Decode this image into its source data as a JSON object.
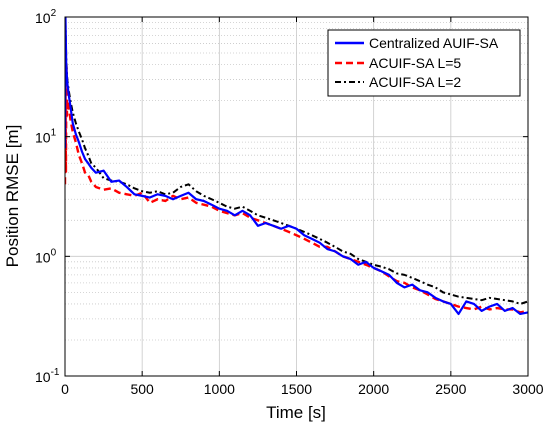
{
  "chart_data": {
    "type": "line",
    "xlabel": "Time [s]",
    "ylabel": "Position RMSE [m]",
    "xlim": [
      0,
      3000
    ],
    "ylim": [
      0.1,
      100
    ],
    "yscale": "log",
    "grid": true,
    "legend_position": "top-right",
    "x_ticks": [
      0,
      500,
      1000,
      1500,
      2000,
      2500,
      3000
    ],
    "x_tick_labels": [
      "0",
      "500",
      "1000",
      "1500",
      "2000",
      "2500",
      "3000"
    ],
    "y_ticks": [
      0.1,
      1,
      10,
      100
    ],
    "y_tick_labels": [
      {
        "base": "10",
        "exp": "-1"
      },
      {
        "base": "10",
        "exp": "0"
      },
      {
        "base": "10",
        "exp": "1"
      },
      {
        "base": "10",
        "exp": "2"
      }
    ],
    "series": [
      {
        "name": "Centralized AUIF-SA",
        "color": "#0000ff",
        "style": "solid",
        "points": [
          [
            0,
            8
          ],
          [
            3,
            100
          ],
          [
            8,
            40
          ],
          [
            15,
            28
          ],
          [
            25,
            22
          ],
          [
            35,
            18
          ],
          [
            50,
            13
          ],
          [
            70,
            10.5
          ],
          [
            90,
            9
          ],
          [
            110,
            7.5
          ],
          [
            130,
            6.5
          ],
          [
            150,
            6
          ],
          [
            170,
            5.5
          ],
          [
            200,
            5
          ],
          [
            250,
            5.2
          ],
          [
            300,
            4.2
          ],
          [
            350,
            4.3
          ],
          [
            400,
            3.8
          ],
          [
            450,
            3.3
          ],
          [
            500,
            3.2
          ],
          [
            550,
            3.1
          ],
          [
            600,
            3.3
          ],
          [
            650,
            3.2
          ],
          [
            700,
            3.0
          ],
          [
            750,
            3.2
          ],
          [
            800,
            3.4
          ],
          [
            850,
            3.0
          ],
          [
            900,
            2.9
          ],
          [
            950,
            2.7
          ],
          [
            1000,
            2.5
          ],
          [
            1050,
            2.4
          ],
          [
            1100,
            2.2
          ],
          [
            1150,
            2.4
          ],
          [
            1200,
            2.2
          ],
          [
            1250,
            1.8
          ],
          [
            1300,
            1.9
          ],
          [
            1350,
            1.8
          ],
          [
            1400,
            1.7
          ],
          [
            1450,
            1.8
          ],
          [
            1500,
            1.7
          ],
          [
            1550,
            1.5
          ],
          [
            1600,
            1.4
          ],
          [
            1650,
            1.3
          ],
          [
            1700,
            1.15
          ],
          [
            1750,
            1.1
          ],
          [
            1800,
            1.0
          ],
          [
            1850,
            0.95
          ],
          [
            1900,
            0.85
          ],
          [
            1950,
            0.9
          ],
          [
            2000,
            0.8
          ],
          [
            2050,
            0.75
          ],
          [
            2100,
            0.7
          ],
          [
            2150,
            0.6
          ],
          [
            2200,
            0.55
          ],
          [
            2250,
            0.58
          ],
          [
            2300,
            0.52
          ],
          [
            2350,
            0.5
          ],
          [
            2400,
            0.45
          ],
          [
            2450,
            0.42
          ],
          [
            2500,
            0.4
          ],
          [
            2550,
            0.33
          ],
          [
            2600,
            0.42
          ],
          [
            2650,
            0.4
          ],
          [
            2700,
            0.35
          ],
          [
            2750,
            0.38
          ],
          [
            2800,
            0.4
          ],
          [
            2850,
            0.35
          ],
          [
            2900,
            0.37
          ],
          [
            2950,
            0.33
          ],
          [
            3000,
            0.34
          ]
        ]
      },
      {
        "name": "ACUIF-SA L=5",
        "color": "#ff0000",
        "style": "dashed",
        "points": [
          [
            0,
            4
          ],
          [
            3,
            30
          ],
          [
            6,
            5
          ],
          [
            9,
            40
          ],
          [
            13,
            15
          ],
          [
            18,
            20
          ],
          [
            25,
            18
          ],
          [
            35,
            14
          ],
          [
            50,
            11
          ],
          [
            70,
            9
          ],
          [
            90,
            7
          ],
          [
            110,
            6
          ],
          [
            130,
            5
          ],
          [
            150,
            4.8
          ],
          [
            170,
            4.2
          ],
          [
            200,
            3.8
          ],
          [
            250,
            3.6
          ],
          [
            300,
            3.7
          ],
          [
            350,
            3.4
          ],
          [
            400,
            3.3
          ],
          [
            450,
            3.2
          ],
          [
            500,
            3.4
          ],
          [
            550,
            2.8
          ],
          [
            600,
            3.0
          ],
          [
            650,
            2.9
          ],
          [
            700,
            3.2
          ],
          [
            750,
            3.0
          ],
          [
            800,
            3.1
          ],
          [
            850,
            2.8
          ],
          [
            900,
            2.7
          ],
          [
            950,
            2.6
          ],
          [
            1000,
            2.4
          ],
          [
            1050,
            2.3
          ],
          [
            1100,
            2.2
          ],
          [
            1150,
            2.3
          ],
          [
            1200,
            2.1
          ],
          [
            1250,
            2.0
          ],
          [
            1300,
            1.9
          ],
          [
            1350,
            1.8
          ],
          [
            1400,
            1.7
          ],
          [
            1450,
            1.6
          ],
          [
            1500,
            1.5
          ],
          [
            1550,
            1.4
          ],
          [
            1600,
            1.3
          ],
          [
            1650,
            1.2
          ],
          [
            1700,
            1.2
          ],
          [
            1750,
            1.1
          ],
          [
            1800,
            1.0
          ],
          [
            1850,
            0.95
          ],
          [
            1900,
            0.9
          ],
          [
            1950,
            0.85
          ],
          [
            2000,
            0.8
          ],
          [
            2050,
            0.75
          ],
          [
            2100,
            0.68
          ],
          [
            2150,
            0.62
          ],
          [
            2200,
            0.6
          ],
          [
            2250,
            0.55
          ],
          [
            2300,
            0.52
          ],
          [
            2350,
            0.48
          ],
          [
            2400,
            0.44
          ],
          [
            2450,
            0.42
          ],
          [
            2500,
            0.4
          ],
          [
            2550,
            0.38
          ],
          [
            2600,
            0.37
          ],
          [
            2650,
            0.36
          ],
          [
            2700,
            0.38
          ],
          [
            2750,
            0.36
          ],
          [
            2800,
            0.37
          ],
          [
            2850,
            0.36
          ],
          [
            2900,
            0.36
          ],
          [
            2950,
            0.34
          ],
          [
            3000,
            0.35
          ]
        ]
      },
      {
        "name": "ACUIF-SA L=2",
        "color": "#000000",
        "style": "dashdot",
        "points": [
          [
            0,
            30
          ],
          [
            3,
            90
          ],
          [
            8,
            45
          ],
          [
            15,
            30
          ],
          [
            25,
            24
          ],
          [
            35,
            20
          ],
          [
            50,
            16
          ],
          [
            70,
            13
          ],
          [
            90,
            11
          ],
          [
            110,
            9.5
          ],
          [
            130,
            8
          ],
          [
            150,
            7
          ],
          [
            170,
            6
          ],
          [
            200,
            5.5
          ],
          [
            250,
            4.5
          ],
          [
            300,
            4.3
          ],
          [
            350,
            4.2
          ],
          [
            400,
            4.0
          ],
          [
            450,
            3.7
          ],
          [
            500,
            3.5
          ],
          [
            550,
            3.4
          ],
          [
            600,
            3.5
          ],
          [
            650,
            3.3
          ],
          [
            700,
            3.4
          ],
          [
            750,
            3.8
          ],
          [
            800,
            4.0
          ],
          [
            850,
            3.5
          ],
          [
            900,
            3.2
          ],
          [
            950,
            3.0
          ],
          [
            1000,
            2.8
          ],
          [
            1050,
            2.6
          ],
          [
            1100,
            2.5
          ],
          [
            1150,
            2.6
          ],
          [
            1200,
            2.4
          ],
          [
            1250,
            2.2
          ],
          [
            1300,
            2.1
          ],
          [
            1350,
            2.0
          ],
          [
            1400,
            1.9
          ],
          [
            1450,
            1.8
          ],
          [
            1500,
            1.7
          ],
          [
            1550,
            1.6
          ],
          [
            1600,
            1.5
          ],
          [
            1650,
            1.4
          ],
          [
            1700,
            1.3
          ],
          [
            1750,
            1.2
          ],
          [
            1800,
            1.1
          ],
          [
            1850,
            1.05
          ],
          [
            1900,
            0.95
          ],
          [
            1950,
            0.9
          ],
          [
            2000,
            0.85
          ],
          [
            2050,
            0.82
          ],
          [
            2100,
            0.78
          ],
          [
            2150,
            0.72
          ],
          [
            2200,
            0.7
          ],
          [
            2250,
            0.66
          ],
          [
            2300,
            0.62
          ],
          [
            2350,
            0.58
          ],
          [
            2400,
            0.55
          ],
          [
            2450,
            0.5
          ],
          [
            2500,
            0.48
          ],
          [
            2550,
            0.46
          ],
          [
            2600,
            0.45
          ],
          [
            2650,
            0.44
          ],
          [
            2700,
            0.43
          ],
          [
            2750,
            0.45
          ],
          [
            2800,
            0.44
          ],
          [
            2850,
            0.43
          ],
          [
            2900,
            0.42
          ],
          [
            2950,
            0.4
          ],
          [
            3000,
            0.42
          ]
        ]
      }
    ]
  }
}
